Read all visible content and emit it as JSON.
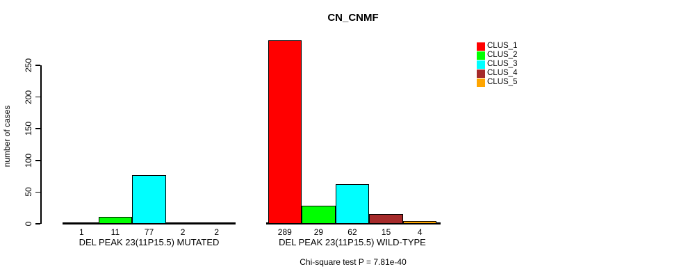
{
  "title": "CN_CNMF",
  "y_axis": {
    "label": "number of cases"
  },
  "footer": {
    "text": "Chi-square test P = 7.81e-40"
  },
  "chart_data": {
    "type": "bar",
    "title": "CN_CNMF",
    "ylabel": "number of cases",
    "xlabel": "Chi-square test P = 7.81e-40",
    "ylim": [
      0,
      250
    ],
    "yticks": [
      0,
      50,
      100,
      150,
      200,
      250
    ],
    "grid": false,
    "legend_position": "top-right",
    "series": [
      {
        "name": "CLUS_1",
        "color": "#FF0000"
      },
      {
        "name": "CLUS_2",
        "color": "#00FF00"
      },
      {
        "name": "CLUS_3",
        "color": "#00FFFF"
      },
      {
        "name": "CLUS_4",
        "color": "#A52A2A"
      },
      {
        "name": "CLUS_5",
        "color": "#FFA500"
      }
    ],
    "groups": [
      {
        "label": "DEL PEAK 23(11P15.5) MUTATED",
        "values": [
          1,
          11,
          77,
          2,
          2
        ]
      },
      {
        "label": "DEL PEAK 23(11P15.5) WILD-TYPE",
        "values": [
          289,
          29,
          62,
          15,
          4
        ]
      }
    ]
  }
}
